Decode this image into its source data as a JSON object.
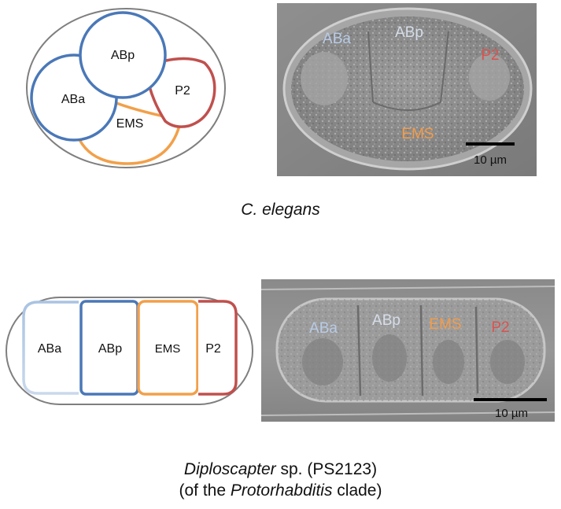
{
  "colors": {
    "ABa_light": "#a9c3e2",
    "ABa_dark": "#4a78b8",
    "ABp": "#4a78b8",
    "EMS": "#f2a04a",
    "P2": "#c0504d",
    "embryo_outline": "#7f7f7f",
    "micrograph_label_ABa": "#b8cbe6",
    "micrograph_label_ABp": "#d6deea",
    "micrograph_label_EMS": "#f39c4a",
    "micrograph_label_P2": "#d9534f"
  },
  "top": {
    "diagram": {
      "aba": "ABa",
      "abp": "ABp",
      "p2": "P2",
      "ems": "EMS"
    },
    "micrograph": {
      "aba": "ABa",
      "abp": "ABp",
      "p2": "P2",
      "ems": "EMS",
      "scale": "10 µm"
    },
    "caption": "C. elegans"
  },
  "bottom": {
    "diagram": {
      "aba": "ABa",
      "abp": "ABp",
      "ems": "EMS",
      "p2": "P2"
    },
    "micrograph": {
      "aba": "ABa",
      "abp": "ABp",
      "ems": "EMS",
      "p2": "P2",
      "scale": "10 µm"
    },
    "caption": {
      "line1_genus": "Diploscapter",
      "line1_rest": " sp. (PS2123)",
      "line2_pre": "(of the ",
      "line2_clade": "Protorhabditis",
      "line2_post": " clade)"
    }
  }
}
